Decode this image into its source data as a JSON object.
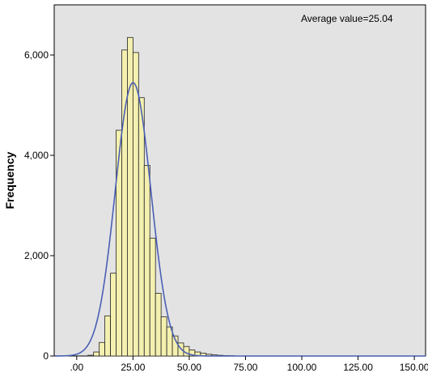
{
  "chart_data": {
    "type": "bar",
    "subtype": "histogram",
    "title": "",
    "xlabel": "",
    "ylabel": "Frequency",
    "annotation": "Average value=25.04",
    "xlim": [
      -10,
      155
    ],
    "ylim": [
      0,
      7000
    ],
    "x_ticks": [
      0,
      25,
      50,
      75,
      100,
      125,
      150
    ],
    "x_tick_labels": [
      ".00",
      "25.00",
      "50.00",
      "75.00",
      "100.00",
      "125.00",
      "150.00"
    ],
    "y_ticks": [
      0,
      2000,
      4000,
      6000
    ],
    "y_tick_labels": [
      "0",
      "2,000",
      "4,000",
      "6,000"
    ],
    "grid": false,
    "bin_width": 2.5,
    "bins": [
      {
        "x0": 5,
        "value": 15
      },
      {
        "x0": 7.5,
        "value": 80
      },
      {
        "x0": 10,
        "value": 270
      },
      {
        "x0": 12.5,
        "value": 800
      },
      {
        "x0": 15,
        "value": 1650
      },
      {
        "x0": 17.5,
        "value": 4500
      },
      {
        "x0": 20,
        "value": 6100
      },
      {
        "x0": 22.5,
        "value": 6350
      },
      {
        "x0": 25,
        "value": 6050
      },
      {
        "x0": 27.5,
        "value": 5150
      },
      {
        "x0": 30,
        "value": 3800
      },
      {
        "x0": 32.5,
        "value": 2350
      },
      {
        "x0": 35,
        "value": 1250
      },
      {
        "x0": 37.5,
        "value": 780
      },
      {
        "x0": 40,
        "value": 580
      },
      {
        "x0": 42.5,
        "value": 400
      },
      {
        "x0": 45,
        "value": 260
      },
      {
        "x0": 47.5,
        "value": 190
      },
      {
        "x0": 50,
        "value": 120
      },
      {
        "x0": 52.5,
        "value": 80
      },
      {
        "x0": 55,
        "value": 55
      },
      {
        "x0": 57.5,
        "value": 35
      },
      {
        "x0": 60,
        "value": 22
      },
      {
        "x0": 62.5,
        "value": 14
      },
      {
        "x0": 65,
        "value": 9
      },
      {
        "x0": 67.5,
        "value": 6
      }
    ],
    "normal_curve": {
      "mean": 25.04,
      "sd": 7.9,
      "peak": 5450,
      "color": "#4a5fb4"
    },
    "bar_fill": "#f4f0b0",
    "bar_stroke": "#222222",
    "plot_background": "#e3e3e3"
  }
}
